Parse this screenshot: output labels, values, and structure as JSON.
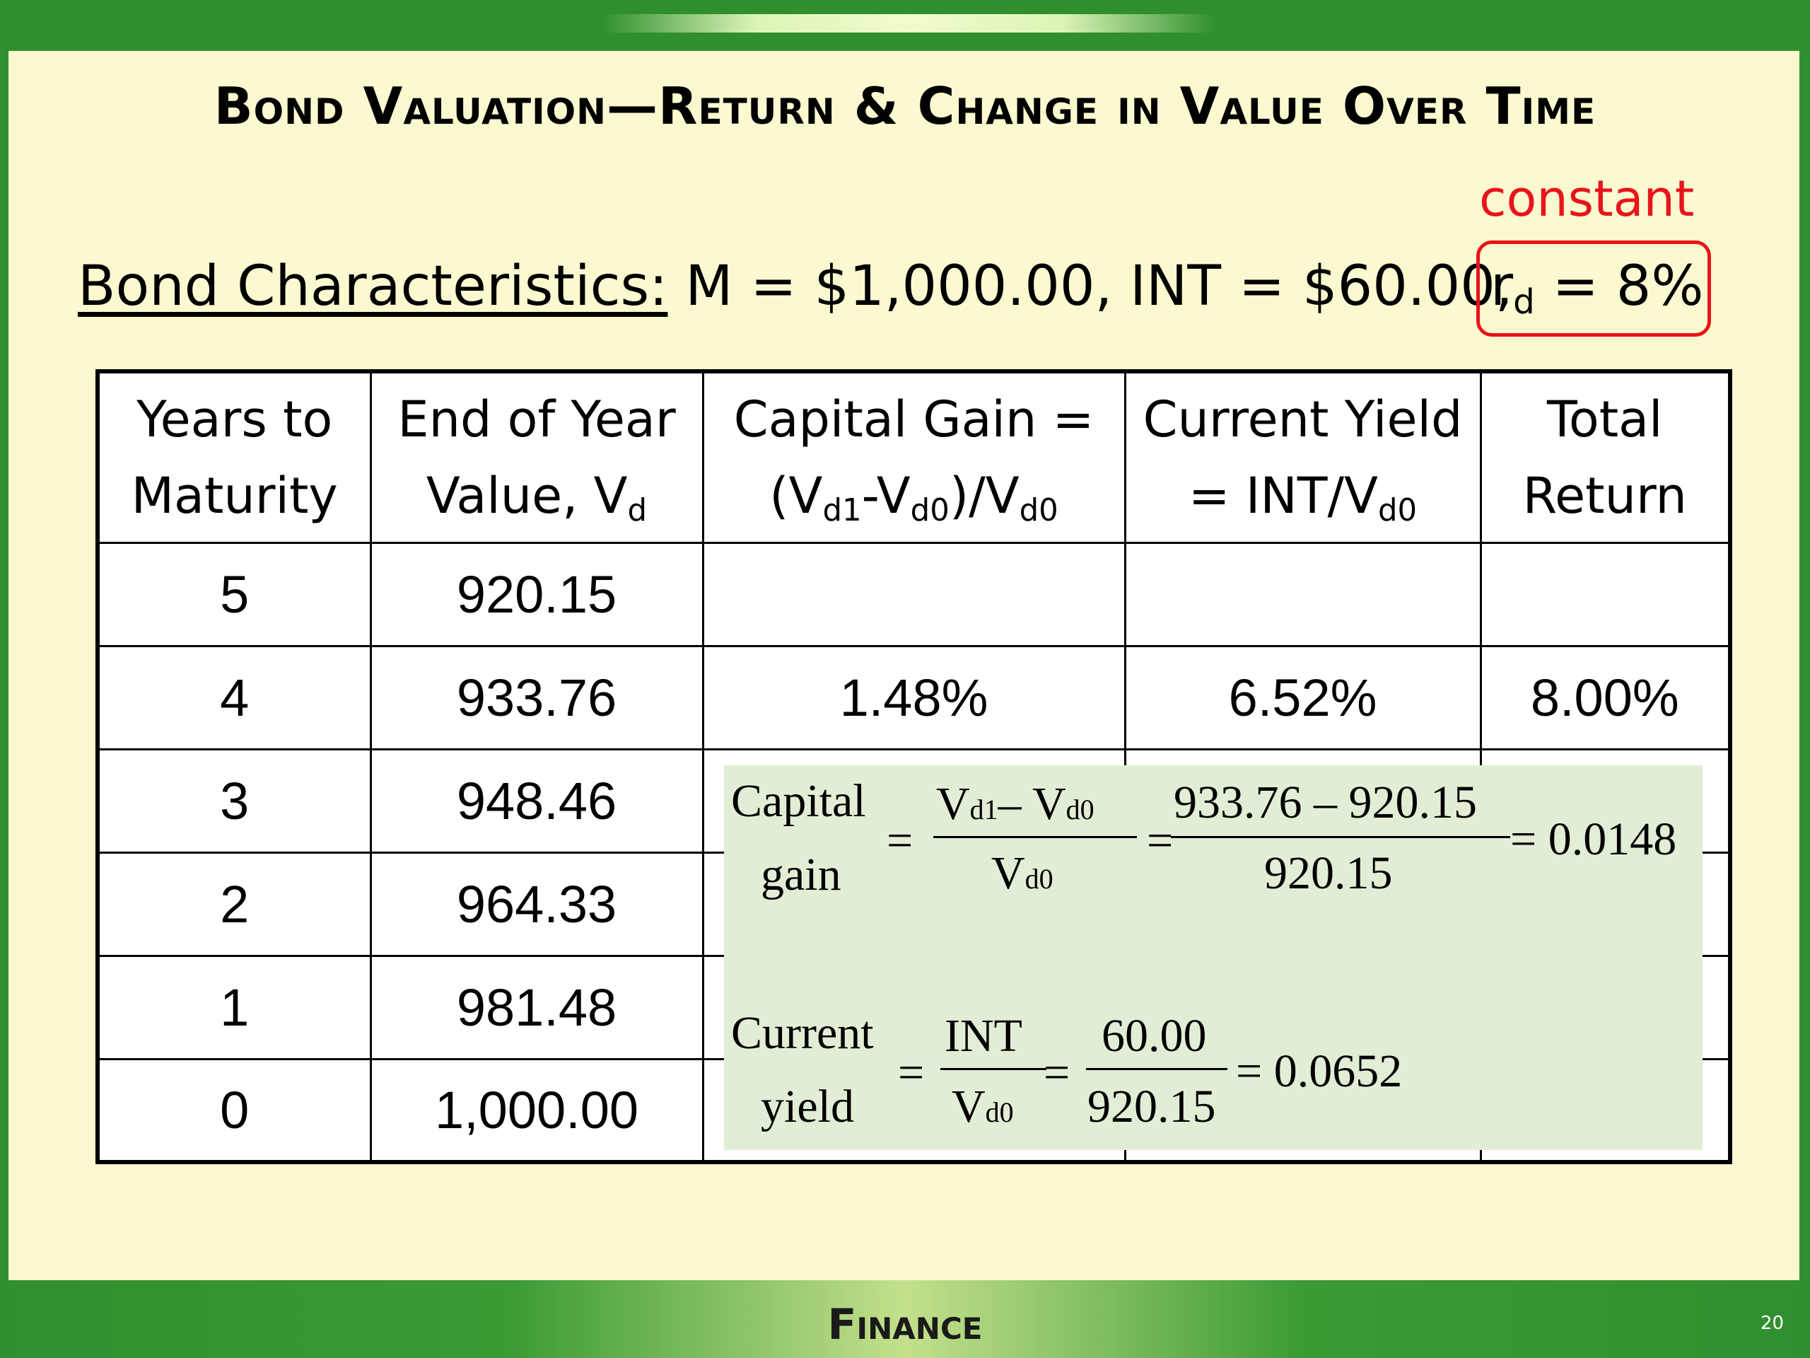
{
  "slide": {
    "title": "Bond Valuation—Return & Change in Value Over Time",
    "constant_note": "constant",
    "characteristics_label": "Bond Characteristics:",
    "characteristics_text": "M = $1,000.00, INT = $60.00,",
    "rd_symbol": "r",
    "rd_sub": "d",
    "rd_value": "= 8%",
    "footer": "Finance",
    "page_number": "20"
  },
  "table": {
    "headers": {
      "years_line1": "Years to",
      "years_line2": "Maturity",
      "value_line1": "End of Year",
      "value_line2_prefix": "Value, V",
      "value_line2_sub": "d",
      "gain_line1": "Capital Gain =",
      "gain_line2_a": "(V",
      "gain_line2_sub1": "d1",
      "gain_line2_b": "-V",
      "gain_line2_sub2": "d0",
      "gain_line2_c": ")/V",
      "gain_line2_sub3": "d0",
      "yield_line1": "Current Yield",
      "yield_line2_prefix": "= INT/V",
      "yield_line2_sub": "d0",
      "total_line1": "Total",
      "total_line2": "Return"
    },
    "rows": [
      {
        "years": "5",
        "value": "920.15",
        "gain": "",
        "yield": "",
        "total": ""
      },
      {
        "years": "4",
        "value": "933.76",
        "gain": "1.48%",
        "yield": "6.52%",
        "total": "8.00%"
      },
      {
        "years": "3",
        "value": "948.46",
        "gain": "",
        "yield": "",
        "total": ""
      },
      {
        "years": "2",
        "value": "964.33",
        "gain": "",
        "yield": "",
        "total": ""
      },
      {
        "years": "1",
        "value": "981.48",
        "gain": "",
        "yield": "",
        "total": ""
      },
      {
        "years": "0",
        "value": "1,000.00",
        "gain": "",
        "yield": "",
        "total": ""
      }
    ]
  },
  "formulas": {
    "capital_gain": {
      "label_line1": "Capital",
      "label_line2": "gain",
      "eq1": "=",
      "num_a": "V",
      "num_a_sub": "d1",
      "num_minus": "– V",
      "num_b_sub": "d0",
      "den": "V",
      "den_sub": "d0",
      "eq2": "=",
      "num_values": "933.76 – 920.15",
      "den_value": "920.15",
      "result": "= 0.0148"
    },
    "current_yield": {
      "label_line1": "Current",
      "label_line2": "yield",
      "eq1": "=",
      "num": "INT",
      "den": "V",
      "den_sub": "d0",
      "eq2": "=",
      "num_value": "60.00",
      "den_value": "920.15",
      "result": "= 0.0652"
    }
  }
}
